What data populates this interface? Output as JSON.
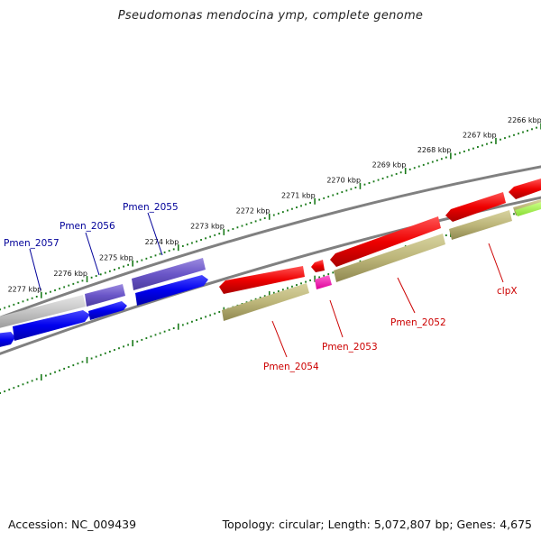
{
  "title": "Pseudomonas mendocina ymp, complete genome",
  "footer": {
    "accession": "Accession: NC_009439",
    "topology": "Topology: circular; Length: 5,072,807 bp; Genes: 4,675"
  },
  "colors": {
    "backbone": "#808080",
    "tick": "#1a7a1a",
    "forward_label": "#000099",
    "reverse_label": "#cc0000"
  },
  "scale": {
    "outer_labels": [
      "2266 kbp",
      "2267 kbp",
      "2268 kbp",
      "2269 kbp",
      "2270 kbp",
      "2271 kbp",
      "2272 kbp",
      "2273 kbp",
      "2274 kbp",
      "2275 kbp",
      "2276 kbp",
      "2277 kbp"
    ]
  },
  "genes": {
    "forward": [
      "Pmen_2055",
      "Pmen_2056",
      "Pmen_2057"
    ],
    "reverse": [
      "clpX",
      "Pmen_2052",
      "Pmen_2053",
      "Pmen_2054"
    ]
  }
}
